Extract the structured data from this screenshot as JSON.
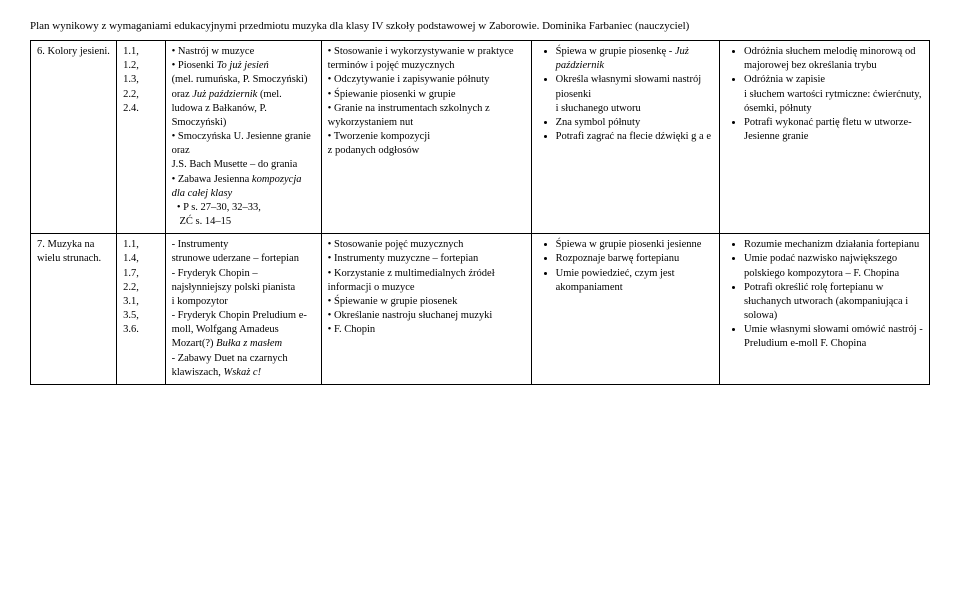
{
  "header": "Plan wynikowy z wymaganiami edukacyjnymi przedmiotu muzyka dla klasy IV szkoły podstawowej w Zaborowie. Dominika Farbaniec (nauczyciel)",
  "rows": [
    {
      "topic": "6. Kolory jesieni.",
      "refs": "1.1,\n1.2,\n1.3,\n2.2,\n2.4.",
      "col3_html": "• Nastrój w muzyce<br>• Piosenki <span class=\"italic\">To już jesień</span><br>(mel. rumuńska, P. Smoczyński) oraz <span class=\"italic\">Już październik</span> (mel. ludowa z Bałkanów, P. Smoczyński)<br>• Smoczyńska U. Jesienne granie oraz<br>J.S. Bach Musette – do grania<br>• Zabawa Jesienna <span class=\"italic\">kompozycja dla całej klasy</span><br>&nbsp;&nbsp;• P s. 27–30, 32–33,<br>&nbsp;&nbsp;&nbsp;ZĆ s. 14–15",
      "col4_html": "• Stosowanie i wykorzystywanie w praktyce terminów i pojęć muzycznych<br>• Odczytywanie i zapisywanie półnuty<br>• Śpiewanie piosenki w grupie<br>• Granie na instrumentach szkolnych z wykorzystaniem nut<br>• Tworzenie kompozycji<br>z podanych odgłosów",
      "col5_items": [
        "Śpiewa w grupie piosenkę - <span class=\"italic\">Już październik</span>",
        "Określa własnymi słowami nastrój piosenki<br>i słuchanego utworu",
        "Zna symbol półnuty",
        "Potrafi zagrać na flecie dźwięki g a e"
      ],
      "col6_items": [
        "Odróżnia słuchem melodię minorową od majorowej bez określania trybu",
        "Odróżnia w zapisie<br>i słuchem wartości rytmiczne: ćwierćnuty, ósemki, półnuty",
        "Potrafi wykonać partię fletu w utworze- Jesienne granie"
      ]
    },
    {
      "topic": "7. Muzyka na wielu strunach.",
      "refs": "1.1,\n1.4,\n1.7,\n2.2,\n3.1,\n3.5,\n3.6.",
      "col3_html": "- Instrumenty<br>strunowe uderzane – fortepian<br>- Fryderyk Chopin – najsłynniejszy polski pianista<br>i kompozytor<br>- Fryderyk Chopin Preludium e-moll, Wolfgang Amadeus Mozart(?) <span class=\"italic\">Bułka z masłem</span><br>- Zabawy Duet na czarnych klawiszach, <span class=\"italic\">Wskaż c!</span>",
      "col4_html": "• Stosowanie pojęć muzycznych<br>• Instrumenty muzyczne – fortepian<br>• Korzystanie z multimedialnych źródeł informacji o muzyce<br>• Śpiewanie w grupie piosenek<br>• Określanie nastroju słuchanej muzyki<br>• F. Chopin",
      "col5_items": [
        "Śpiewa w grupie piosenki jesienne",
        "Rozpoznaje barwę fortepianu",
        "Umie powiedzieć, czym jest akompaniament"
      ],
      "col6_items": [
        "Rozumie mechanizm działania fortepianu",
        "Umie podać nazwisko największego polskiego kompozytora – F. Chopina",
        "Potrafi określić rolę fortepianu w słuchanych utworach (akompaniująca i solowa)",
        "Umie własnymi słowami omówić nastrój - Preludium e-moll F. Chopina"
      ]
    }
  ]
}
